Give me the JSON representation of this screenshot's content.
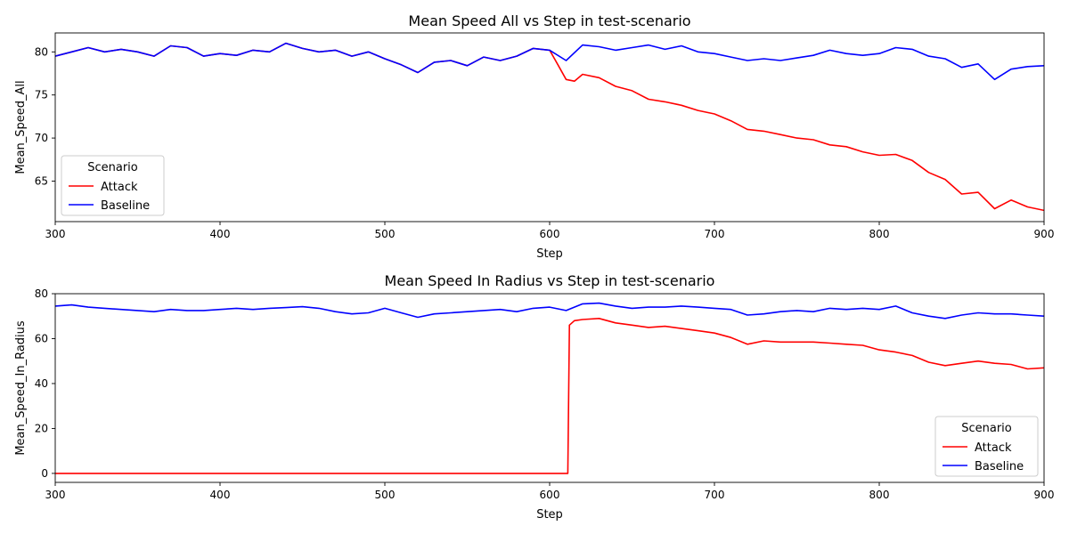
{
  "chart_data": [
    {
      "type": "line",
      "title": "Mean Speed All vs Step in test-scenario",
      "xlabel": "Step",
      "ylabel": "Mean_Speed_All",
      "xlim": [
        300,
        900
      ],
      "ylim": [
        60.3,
        82.2
      ],
      "xticks": [
        300,
        400,
        500,
        600,
        700,
        800,
        900
      ],
      "yticks": [
        65,
        70,
        75,
        80
      ],
      "legend": {
        "title": "Scenario",
        "position": "lower-left"
      },
      "grid": false,
      "series": [
        {
          "name": "Attack",
          "color": "#ff0000",
          "x": [
            300,
            310,
            320,
            330,
            340,
            350,
            360,
            370,
            380,
            390,
            400,
            410,
            420,
            430,
            440,
            450,
            460,
            470,
            480,
            490,
            500,
            510,
            520,
            530,
            540,
            550,
            560,
            570,
            580,
            590,
            600,
            605,
            610,
            615,
            620,
            630,
            640,
            650,
            660,
            670,
            680,
            690,
            700,
            710,
            720,
            730,
            740,
            750,
            760,
            770,
            780,
            790,
            800,
            810,
            820,
            830,
            840,
            850,
            860,
            870,
            880,
            890,
            900
          ],
          "y": [
            79.5,
            80.0,
            80.5,
            80.0,
            80.3,
            80.0,
            79.5,
            80.7,
            80.5,
            79.5,
            79.8,
            79.6,
            80.2,
            80.0,
            81.0,
            80.4,
            80.0,
            80.2,
            79.5,
            80.0,
            79.2,
            78.5,
            77.6,
            78.8,
            79.0,
            78.4,
            79.4,
            79.0,
            79.5,
            80.4,
            80.2,
            78.5,
            76.8,
            76.6,
            77.4,
            77.0,
            76.0,
            75.5,
            74.5,
            74.2,
            73.8,
            73.2,
            72.8,
            72.0,
            71.0,
            70.8,
            70.4,
            70.0,
            69.8,
            69.2,
            69.0,
            68.4,
            68.0,
            68.1,
            67.4,
            66.0,
            65.2,
            63.5,
            63.7,
            61.8,
            62.8,
            62.0,
            61.6
          ]
        },
        {
          "name": "Baseline",
          "color": "#0000ff",
          "x": [
            300,
            310,
            320,
            330,
            340,
            350,
            360,
            370,
            380,
            390,
            400,
            410,
            420,
            430,
            440,
            450,
            460,
            470,
            480,
            490,
            500,
            510,
            520,
            530,
            540,
            550,
            560,
            570,
            580,
            590,
            600,
            610,
            620,
            630,
            640,
            650,
            660,
            670,
            680,
            690,
            700,
            710,
            720,
            730,
            740,
            750,
            760,
            770,
            780,
            790,
            800,
            810,
            820,
            830,
            840,
            850,
            860,
            870,
            880,
            890,
            900
          ],
          "y": [
            79.5,
            80.0,
            80.5,
            80.0,
            80.3,
            80.0,
            79.5,
            80.7,
            80.5,
            79.5,
            79.8,
            79.6,
            80.2,
            80.0,
            81.0,
            80.4,
            80.0,
            80.2,
            79.5,
            80.0,
            79.2,
            78.5,
            77.6,
            78.8,
            79.0,
            78.4,
            79.4,
            79.0,
            79.5,
            80.4,
            80.2,
            79.0,
            80.8,
            80.6,
            80.2,
            80.5,
            80.8,
            80.3,
            80.7,
            80.0,
            79.8,
            79.4,
            79.0,
            79.2,
            79.0,
            79.3,
            79.6,
            80.2,
            79.8,
            79.6,
            79.8,
            80.5,
            80.3,
            79.5,
            79.2,
            78.2,
            78.6,
            76.8,
            78.0,
            78.3,
            78.4
          ]
        }
      ]
    },
    {
      "type": "line",
      "title": "Mean Speed In Radius vs Step in test-scenario",
      "xlabel": "Step",
      "ylabel": "Mean_Speed_In_Radius",
      "xlim": [
        300,
        900
      ],
      "ylim": [
        -4,
        80
      ],
      "xticks": [
        300,
        400,
        500,
        600,
        700,
        800,
        900
      ],
      "yticks": [
        0,
        20,
        40,
        60,
        80
      ],
      "legend": {
        "title": "Scenario",
        "position": "lower-right"
      },
      "grid": false,
      "series": [
        {
          "name": "Attack",
          "color": "#ff0000",
          "x": [
            300,
            400,
            500,
            600,
            611,
            612,
            615,
            620,
            630,
            640,
            650,
            660,
            670,
            680,
            690,
            700,
            710,
            720,
            730,
            740,
            750,
            760,
            770,
            780,
            790,
            800,
            810,
            820,
            830,
            840,
            850,
            860,
            870,
            880,
            890,
            900
          ],
          "y": [
            0,
            0,
            0,
            0,
            0,
            66,
            68,
            68.5,
            69,
            67,
            66,
            65,
            65.5,
            64.5,
            63.5,
            62.5,
            60.5,
            57.5,
            59,
            58.5,
            58.5,
            58.5,
            58,
            57.5,
            57,
            55,
            54,
            52.5,
            49.5,
            48,
            49,
            50,
            49,
            48.5,
            46.5,
            47
          ]
        },
        {
          "name": "Baseline",
          "color": "#0000ff",
          "x": [
            300,
            310,
            320,
            330,
            340,
            350,
            360,
            370,
            380,
            390,
            400,
            410,
            420,
            430,
            440,
            450,
            460,
            470,
            480,
            490,
            500,
            510,
            520,
            530,
            540,
            550,
            560,
            570,
            580,
            590,
            600,
            610,
            620,
            630,
            640,
            650,
            660,
            670,
            680,
            690,
            700,
            710,
            720,
            730,
            740,
            750,
            760,
            770,
            780,
            790,
            800,
            810,
            820,
            830,
            840,
            850,
            860,
            870,
            880,
            890,
            900
          ],
          "y": [
            74.5,
            75.0,
            74.0,
            73.5,
            73.0,
            72.5,
            72.0,
            73.0,
            72.5,
            72.5,
            73.0,
            73.5,
            73.0,
            73.5,
            73.8,
            74.2,
            73.5,
            72.0,
            71.0,
            71.5,
            73.5,
            71.5,
            69.5,
            71.0,
            71.5,
            72.0,
            72.5,
            73.0,
            72.0,
            73.5,
            74.0,
            72.5,
            75.5,
            75.8,
            74.5,
            73.5,
            74.0,
            74.0,
            74.5,
            74.0,
            73.5,
            73.0,
            70.5,
            71.0,
            72.0,
            72.5,
            72.0,
            73.5,
            73.0,
            73.5,
            73.0,
            74.5,
            71.5,
            70.0,
            69.0,
            70.5,
            71.5,
            71.0,
            71.0,
            70.5,
            70.0
          ]
        }
      ]
    }
  ]
}
